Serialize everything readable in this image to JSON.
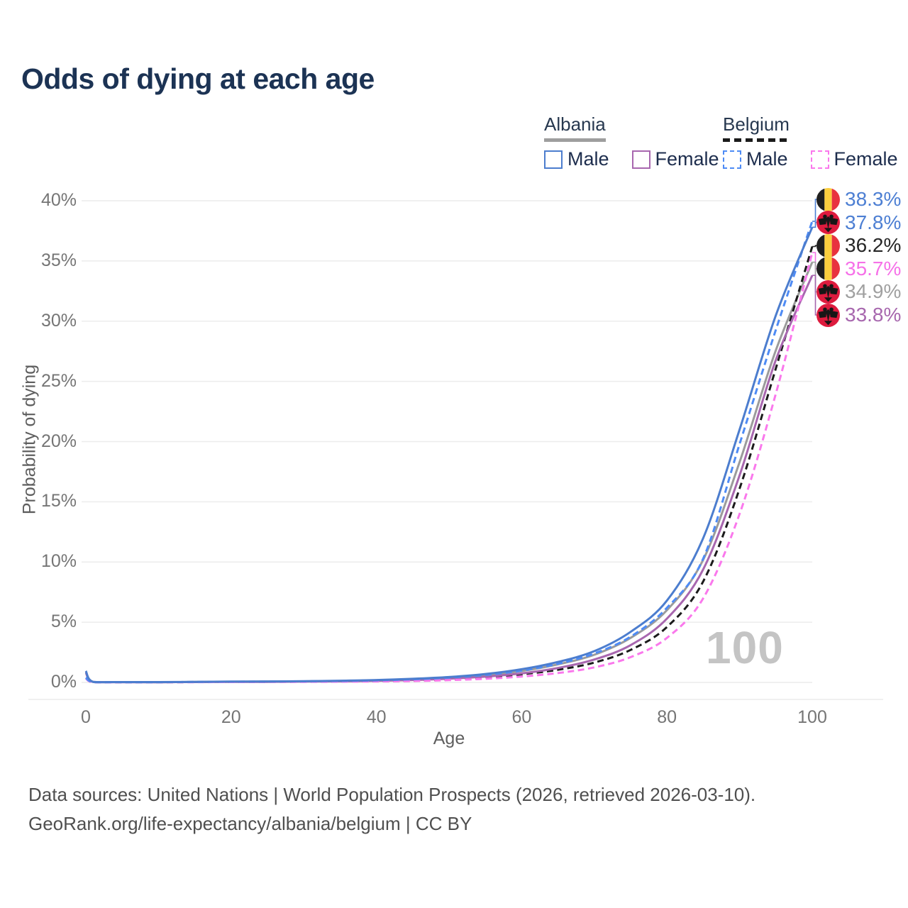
{
  "title": "Odds of dying at each age",
  "legend": {
    "groups": [
      {
        "label": "Albania",
        "style": "solid",
        "underline_color": "#9e9e9e",
        "items": [
          {
            "label": "Male",
            "color": "#4c7dce"
          },
          {
            "label": "Female",
            "color": "#a867af"
          }
        ]
      },
      {
        "label": "Belgium",
        "style": "dashed",
        "underline_color": "#1b1b1b",
        "items": [
          {
            "label": "Male",
            "color": "#4e8bf5"
          },
          {
            "label": "Female",
            "color": "#fa78ec"
          }
        ]
      }
    ]
  },
  "chart_data": {
    "type": "line",
    "title": "Odds of dying at each age",
    "xlabel": "Age",
    "ylabel": "Probability of dying",
    "xlim": [
      0,
      100
    ],
    "ylim": [
      0,
      40
    ],
    "x_ticks": [
      0,
      20,
      40,
      60,
      80,
      100
    ],
    "y_tick_values": [
      0,
      5,
      10,
      15,
      20,
      25,
      30,
      35,
      40
    ],
    "y_tick_labels": [
      "0%",
      "5%",
      "10%",
      "15%",
      "20%",
      "25%",
      "30%",
      "35%",
      "40%"
    ],
    "grid": "horizontal",
    "legend_position": "top-right",
    "watermark": "100",
    "flag_colors": {
      "albania": {
        "red": "#dd1b3e",
        "eagle": "#161616"
      },
      "belgium": {
        "black": "#1f1f1f",
        "yellow": "#fbce3e",
        "red": "#e8333f"
      }
    },
    "series": [
      {
        "id": "albania-combined",
        "name": "Albania (both sexes)",
        "color": "#9b9b9b",
        "dash": "solid",
        "points": [
          [
            0,
            0.9
          ],
          [
            1,
            0.05
          ],
          [
            5,
            0.03
          ],
          [
            10,
            0.02
          ],
          [
            15,
            0.04
          ],
          [
            20,
            0.06
          ],
          [
            25,
            0.07
          ],
          [
            30,
            0.09
          ],
          [
            35,
            0.12
          ],
          [
            40,
            0.17
          ],
          [
            45,
            0.26
          ],
          [
            50,
            0.4
          ],
          [
            55,
            0.6
          ],
          [
            60,
            0.95
          ],
          [
            65,
            1.5
          ],
          [
            70,
            2.3
          ],
          [
            75,
            3.7
          ],
          [
            80,
            6.0
          ],
          [
            85,
            10.2
          ],
          [
            90,
            18.3
          ],
          [
            95,
            27.6
          ],
          [
            100,
            34.9
          ]
        ]
      },
      {
        "id": "belgium-combined",
        "name": "Belgium (both sexes)",
        "color": "#1b1b1b",
        "dash": "dashed",
        "points": [
          [
            0,
            0.37
          ],
          [
            1,
            0.03
          ],
          [
            5,
            0.015
          ],
          [
            10,
            0.015
          ],
          [
            15,
            0.03
          ],
          [
            20,
            0.04
          ],
          [
            25,
            0.05
          ],
          [
            30,
            0.06
          ],
          [
            35,
            0.08
          ],
          [
            40,
            0.11
          ],
          [
            45,
            0.17
          ],
          [
            50,
            0.26
          ],
          [
            55,
            0.42
          ],
          [
            60,
            0.68
          ],
          [
            65,
            1.05
          ],
          [
            70,
            1.65
          ],
          [
            75,
            2.7
          ],
          [
            80,
            4.6
          ],
          [
            85,
            8.4
          ],
          [
            90,
            16.1
          ],
          [
            95,
            26.1
          ],
          [
            100,
            36.2
          ]
        ]
      },
      {
        "id": "albania-female",
        "name": "Albania Female",
        "color": "#a867af",
        "dash": "solid",
        "points": [
          [
            0,
            0.8
          ],
          [
            1,
            0.04
          ],
          [
            5,
            0.02
          ],
          [
            10,
            0.02
          ],
          [
            15,
            0.03
          ],
          [
            20,
            0.04
          ],
          [
            25,
            0.05
          ],
          [
            30,
            0.07
          ],
          [
            35,
            0.09
          ],
          [
            40,
            0.13
          ],
          [
            45,
            0.2
          ],
          [
            50,
            0.31
          ],
          [
            55,
            0.48
          ],
          [
            60,
            0.75
          ],
          [
            65,
            1.2
          ],
          [
            70,
            1.9
          ],
          [
            75,
            3.1
          ],
          [
            80,
            5.3
          ],
          [
            85,
            9.4
          ],
          [
            90,
            17.2
          ],
          [
            95,
            26.8
          ],
          [
            100,
            33.8
          ]
        ]
      },
      {
        "id": "belgium-female",
        "name": "Belgium Female",
        "color": "#fa78ec",
        "dash": "dashed",
        "points": [
          [
            0,
            0.33
          ],
          [
            1,
            0.02
          ],
          [
            5,
            0.012
          ],
          [
            10,
            0.012
          ],
          [
            15,
            0.02
          ],
          [
            20,
            0.03
          ],
          [
            25,
            0.04
          ],
          [
            30,
            0.05
          ],
          [
            35,
            0.06
          ],
          [
            40,
            0.08
          ],
          [
            45,
            0.12
          ],
          [
            50,
            0.19
          ],
          [
            55,
            0.3
          ],
          [
            60,
            0.49
          ],
          [
            65,
            0.78
          ],
          [
            70,
            1.25
          ],
          [
            75,
            2.1
          ],
          [
            80,
            3.7
          ],
          [
            85,
            7.0
          ],
          [
            90,
            14.0
          ],
          [
            95,
            24.0
          ],
          [
            100,
            35.7
          ]
        ]
      },
      {
        "id": "belgium-male",
        "name": "Belgium Male",
        "color": "#4e8bf5",
        "dash": "dashed",
        "points": [
          [
            0,
            0.4
          ],
          [
            1,
            0.03
          ],
          [
            5,
            0.02
          ],
          [
            10,
            0.02
          ],
          [
            15,
            0.04
          ],
          [
            20,
            0.06
          ],
          [
            25,
            0.07
          ],
          [
            30,
            0.09
          ],
          [
            35,
            0.12
          ],
          [
            40,
            0.17
          ],
          [
            45,
            0.26
          ],
          [
            50,
            0.4
          ],
          [
            55,
            0.62
          ],
          [
            60,
            0.98
          ],
          [
            65,
            1.55
          ],
          [
            70,
            2.4
          ],
          [
            75,
            3.8
          ],
          [
            80,
            6.2
          ],
          [
            85,
            10.3
          ],
          [
            90,
            19.8
          ],
          [
            95,
            29.3
          ],
          [
            100,
            38.3
          ]
        ]
      },
      {
        "id": "albania-male",
        "name": "Albania Male",
        "color": "#4c7dce",
        "dash": "solid",
        "points": [
          [
            0,
            0.95
          ],
          [
            1,
            0.05
          ],
          [
            5,
            0.03
          ],
          [
            10,
            0.03
          ],
          [
            15,
            0.05
          ],
          [
            20,
            0.07
          ],
          [
            25,
            0.08
          ],
          [
            30,
            0.1
          ],
          [
            35,
            0.14
          ],
          [
            40,
            0.2
          ],
          [
            45,
            0.3
          ],
          [
            50,
            0.45
          ],
          [
            55,
            0.7
          ],
          [
            60,
            1.1
          ],
          [
            65,
            1.7
          ],
          [
            70,
            2.6
          ],
          [
            75,
            4.2
          ],
          [
            80,
            6.8
          ],
          [
            85,
            12.0
          ],
          [
            90,
            21.0
          ],
          [
            95,
            30.5
          ],
          [
            100,
            37.8
          ]
        ]
      }
    ],
    "end_labels": [
      {
        "value": "38.3%",
        "value_num": 38.3,
        "series": "belgium-male",
        "flag": "belgium",
        "color": "#4d7fd3"
      },
      {
        "value": "37.8%",
        "value_num": 37.8,
        "series": "albania-male",
        "flag": "albania",
        "color": "#4d7fd3"
      },
      {
        "value": "36.2%",
        "value_num": 36.2,
        "series": "belgium-combined",
        "flag": "belgium",
        "color": "#262626"
      },
      {
        "value": "35.7%",
        "value_num": 35.7,
        "series": "belgium-female",
        "flag": "belgium",
        "color": "#f671e8"
      },
      {
        "value": "34.9%",
        "value_num": 34.9,
        "series": "albania-combined",
        "flag": "albania",
        "color": "#a0a0a0"
      },
      {
        "value": "33.8%",
        "value_num": 33.8,
        "series": "albania-female",
        "flag": "albania",
        "color": "#a767ae"
      }
    ]
  },
  "footer": {
    "line1": "Data sources: United Nations | World Population Prospects (2026, retrieved 2026-03-10).",
    "line2": "GeoRank.org/life-expectancy/albania/belgium | CC BY"
  }
}
